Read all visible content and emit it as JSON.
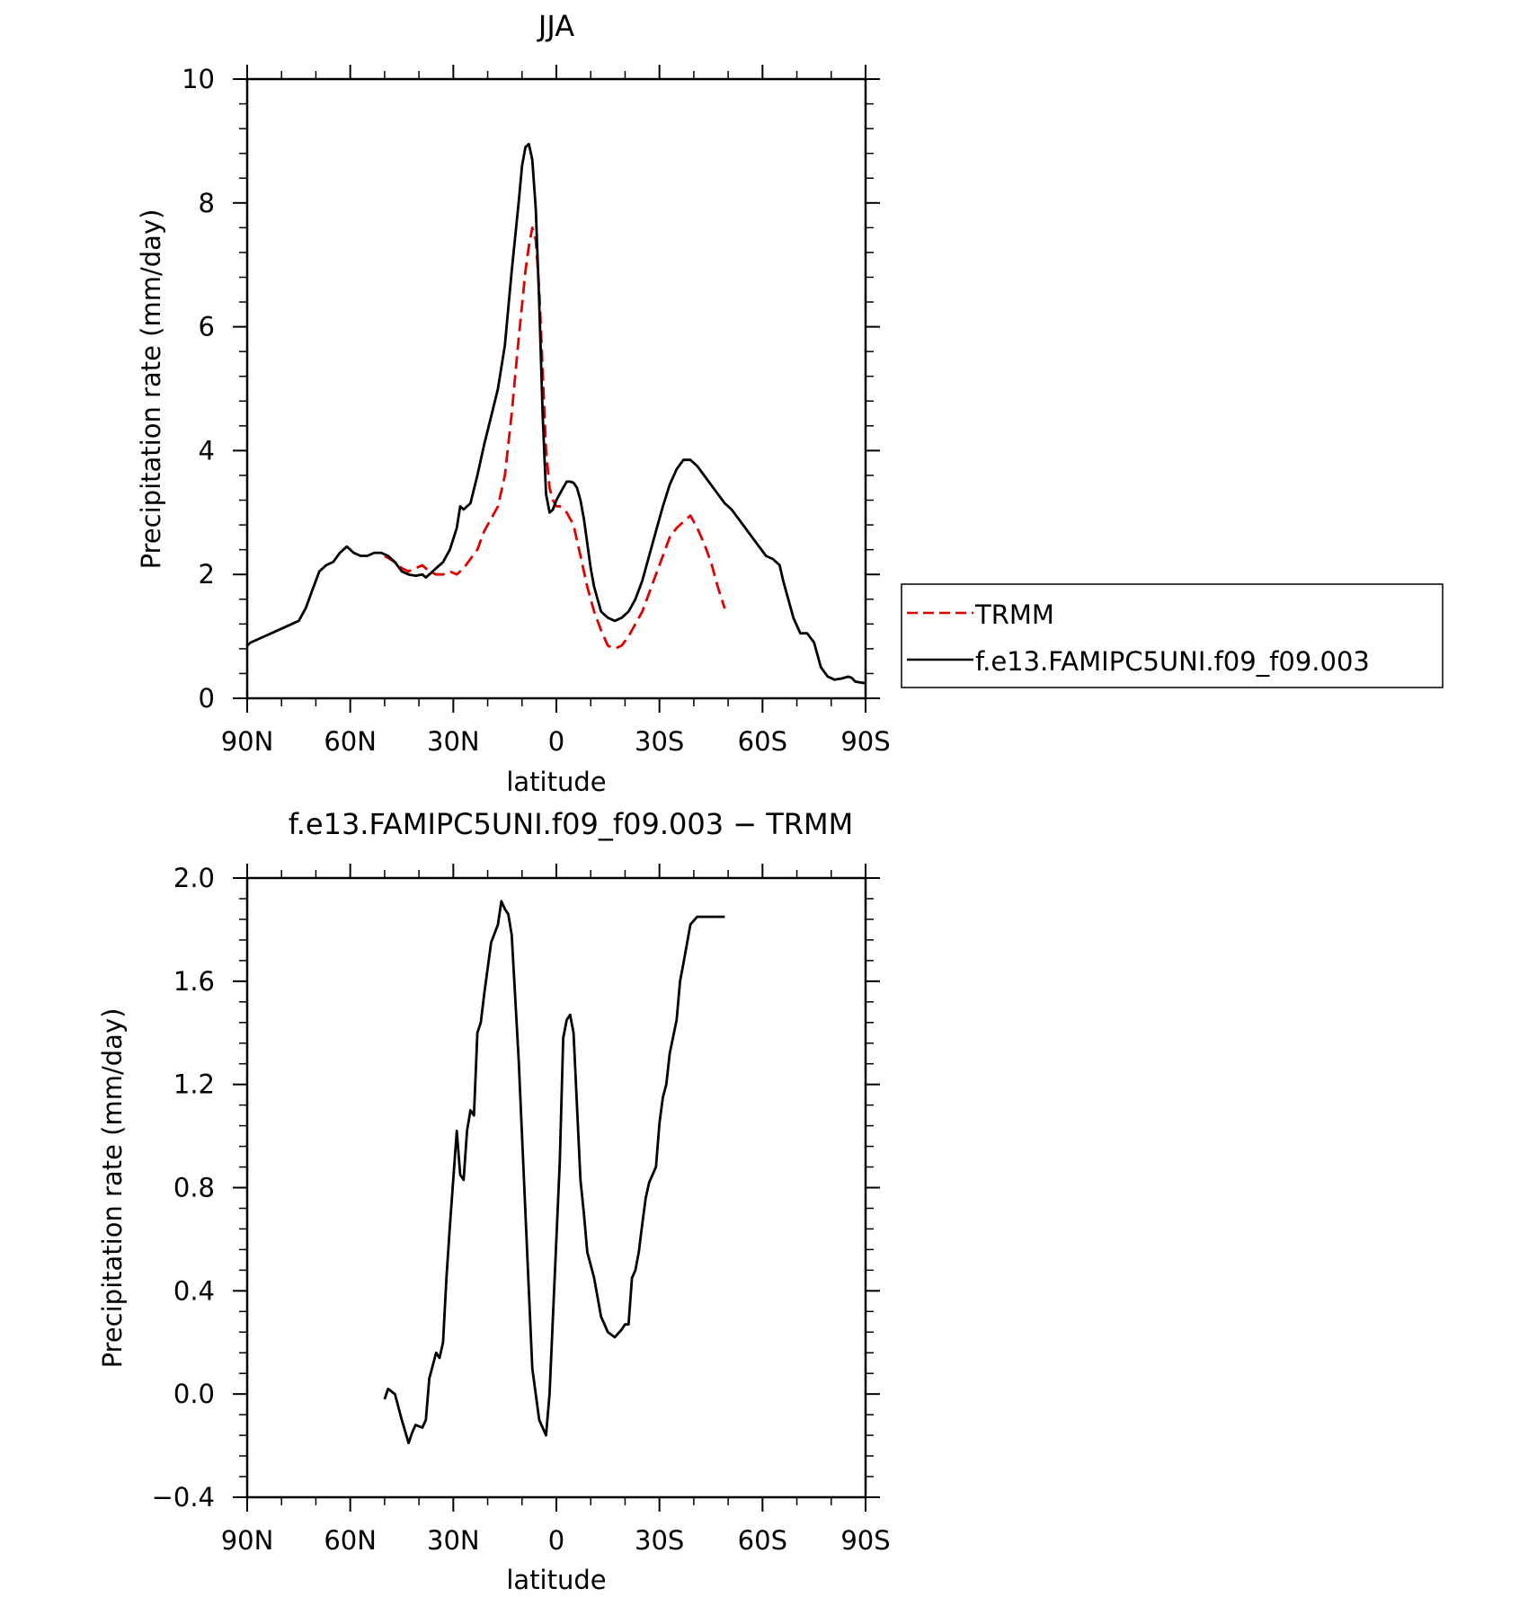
{
  "chart_data": [
    {
      "type": "line",
      "title": "JJA",
      "xlabel": "latitude",
      "ylabel": "Precipitation rate (mm/day)",
      "xlim": [
        90,
        -90
      ],
      "ylim": [
        0,
        10
      ],
      "xticks": [
        90,
        60,
        30,
        0,
        -30,
        -60,
        -90
      ],
      "xtick_labels": [
        "90N",
        "60N",
        "30N",
        "0",
        "30S",
        "60S",
        "90S"
      ],
      "yticks": [
        0,
        2,
        4,
        6,
        8,
        10
      ],
      "ytick_labels": [
        "0",
        "2",
        "4",
        "6",
        "8",
        "10"
      ],
      "grid": false,
      "legend": "right",
      "series": [
        {
          "name": "TRMM",
          "color": "#e00000",
          "style": "dashed",
          "x": [
            50,
            47,
            45,
            43,
            41,
            39,
            37,
            35,
            33,
            31,
            29,
            27,
            25,
            23,
            21,
            19,
            17,
            15,
            13,
            11,
            9,
            8,
            7,
            6,
            5,
            4,
            3,
            2,
            1,
            0,
            -1,
            -2,
            -3,
            -5,
            -7,
            -9,
            -11,
            -13,
            -15,
            -17,
            -19,
            -21,
            -23,
            -25,
            -27,
            -29,
            -31,
            -33,
            -35,
            -37,
            -39,
            -41,
            -43,
            -45,
            -47,
            -49
          ],
          "y": [
            2.3,
            2.2,
            2.1,
            2.05,
            2.1,
            2.15,
            2.05,
            2.0,
            2.0,
            2.05,
            2.0,
            2.1,
            2.25,
            2.4,
            2.7,
            2.9,
            3.1,
            3.6,
            4.6,
            5.8,
            6.9,
            7.3,
            7.6,
            7.4,
            6.6,
            5.3,
            4.0,
            3.4,
            3.2,
            3.1,
            3.1,
            3.05,
            3.0,
            2.8,
            2.3,
            1.8,
            1.4,
            1.1,
            0.85,
            0.8,
            0.85,
            1.0,
            1.2,
            1.4,
            1.7,
            2.0,
            2.3,
            2.6,
            2.75,
            2.85,
            2.95,
            2.75,
            2.5,
            2.2,
            1.8,
            1.45
          ]
        },
        {
          "name": "f.e13.FAMIPC5UNI.f09_f09.003",
          "color": "#000000",
          "style": "solid",
          "x": [
            90,
            89,
            87,
            85,
            83,
            81,
            79,
            77,
            75,
            73,
            71,
            69,
            67,
            65,
            63,
            61,
            60,
            59,
            57,
            55,
            53,
            51,
            49,
            47,
            45,
            43,
            41,
            39,
            38,
            37,
            35,
            33,
            31,
            29,
            28,
            27,
            26,
            25,
            23,
            21,
            19,
            17,
            15,
            13,
            11,
            10,
            9,
            8,
            7,
            6,
            5,
            4,
            3,
            2,
            1,
            0,
            -1,
            -2,
            -3,
            -4,
            -5,
            -6,
            -7,
            -8,
            -9,
            -10,
            -11,
            -13,
            -15,
            -17,
            -19,
            -21,
            -23,
            -25,
            -27,
            -29,
            -31,
            -33,
            -35,
            -37,
            -39,
            -41,
            -43,
            -45,
            -47,
            -49,
            -51,
            -53,
            -55,
            -57,
            -59,
            -61,
            -63,
            -65,
            -66,
            -67,
            -69,
            -71,
            -73,
            -75,
            -77,
            -79,
            -81,
            -83,
            -85,
            -86,
            -87,
            -89,
            -90
          ],
          "y": [
            0.85,
            0.9,
            0.95,
            1.0,
            1.05,
            1.1,
            1.15,
            1.2,
            1.25,
            1.45,
            1.75,
            2.05,
            2.15,
            2.2,
            2.35,
            2.45,
            2.4,
            2.35,
            2.3,
            2.3,
            2.35,
            2.35,
            2.3,
            2.2,
            2.05,
            2.0,
            1.98,
            2.0,
            1.95,
            2.0,
            2.1,
            2.2,
            2.4,
            2.75,
            3.1,
            3.05,
            3.1,
            3.15,
            3.6,
            4.1,
            4.55,
            5.0,
            5.7,
            6.9,
            8.0,
            8.6,
            8.9,
            8.95,
            8.7,
            7.9,
            6.4,
            4.6,
            3.3,
            3.0,
            3.05,
            3.2,
            3.3,
            3.4,
            3.5,
            3.5,
            3.48,
            3.4,
            3.2,
            2.9,
            2.5,
            2.1,
            1.8,
            1.4,
            1.3,
            1.25,
            1.3,
            1.4,
            1.6,
            1.9,
            2.3,
            2.7,
            3.1,
            3.45,
            3.7,
            3.85,
            3.85,
            3.75,
            3.6,
            3.45,
            3.3,
            3.15,
            3.05,
            2.9,
            2.75,
            2.6,
            2.45,
            2.3,
            2.25,
            2.15,
            1.9,
            1.7,
            1.3,
            1.05,
            1.05,
            0.9,
            0.5,
            0.35,
            0.3,
            0.32,
            0.35,
            0.33,
            0.27,
            0.25,
            0.25
          ]
        }
      ]
    },
    {
      "type": "line",
      "title": "f.e13.FAMIPC5UNI.f09_f09.003 − TRMM",
      "xlabel": "latitude",
      "ylabel": "Precipitation rate (mm/day)",
      "xlim": [
        90,
        -90
      ],
      "ylim": [
        -0.4,
        2.0
      ],
      "xticks": [
        90,
        60,
        30,
        0,
        -30,
        -60,
        -90
      ],
      "xtick_labels": [
        "90N",
        "60N",
        "30N",
        "0",
        "30S",
        "60S",
        "90S"
      ],
      "yticks": [
        -0.4,
        0.0,
        0.4,
        0.8,
        1.2,
        1.6,
        2.0
      ],
      "ytick_labels": [
        "−0.4",
        "0.0",
        "0.4",
        "0.8",
        "1.2",
        "1.6",
        "2.0"
      ],
      "grid": false,
      "series": [
        {
          "color": "#000000",
          "style": "solid",
          "x": [
            50,
            49,
            47,
            45,
            43,
            42,
            41,
            39,
            38,
            37,
            35,
            34,
            33,
            32,
            31,
            29,
            28,
            27,
            26,
            25,
            24,
            23,
            22,
            21,
            19,
            17,
            16,
            15,
            14,
            13,
            11,
            9,
            7,
            5,
            4,
            3,
            2,
            1,
            0,
            -1,
            -2,
            -3,
            -4,
            -5,
            -7,
            -8,
            -9,
            -10,
            -11,
            -13,
            -15,
            -17,
            -19,
            -20,
            -21,
            -22,
            -23,
            -24,
            -25,
            -26,
            -27,
            -29,
            -30,
            -31,
            -32,
            -33,
            -35,
            -36,
            -37,
            -39,
            -41,
            -43,
            -45,
            -47,
            -49
          ],
          "y": [
            -0.02,
            0.02,
            0.0,
            -0.1,
            -0.19,
            -0.15,
            -0.12,
            -0.13,
            -0.1,
            0.06,
            0.16,
            0.14,
            0.2,
            0.45,
            0.65,
            1.02,
            0.85,
            0.83,
            1.02,
            1.1,
            1.08,
            1.4,
            1.44,
            1.55,
            1.75,
            1.82,
            1.91,
            1.88,
            1.86,
            1.78,
            1.3,
            0.7,
            0.1,
            -0.1,
            -0.13,
            -0.16,
            0.0,
            0.3,
            0.6,
            0.9,
            1.38,
            1.45,
            1.47,
            1.4,
            0.83,
            0.7,
            0.55,
            0.5,
            0.45,
            0.3,
            0.24,
            0.22,
            0.25,
            0.27,
            0.27,
            0.45,
            0.48,
            0.55,
            0.66,
            0.76,
            0.82,
            0.88,
            1.05,
            1.15,
            1.2,
            1.32,
            1.45,
            1.6,
            1.67,
            1.82,
            1.85,
            1.85,
            1.85,
            1.85,
            1.85
          ]
        }
      ]
    }
  ]
}
